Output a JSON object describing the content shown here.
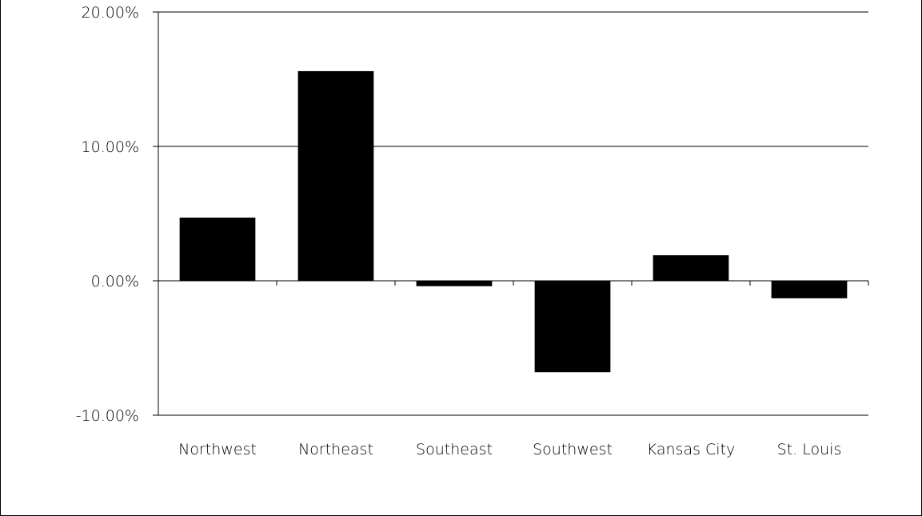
{
  "chart_data": {
    "type": "bar",
    "title": "",
    "xlabel": "",
    "ylabel": "",
    "categories": [
      "Northwest",
      "Northeast",
      "Southeast",
      "Southwest",
      "Kansas City",
      "St. Louis"
    ],
    "values": [
      4.7,
      15.6,
      -0.4,
      -6.8,
      1.9,
      -1.3
    ],
    "ylim": [
      -10,
      20
    ],
    "yticks": [
      -10,
      0,
      10,
      20
    ],
    "ytick_labels": [
      "-10.00%",
      "0.00%",
      "10.00%",
      "20.00%"
    ],
    "grid": true,
    "bar_color": "#000000",
    "gridline_color": "#000000"
  }
}
